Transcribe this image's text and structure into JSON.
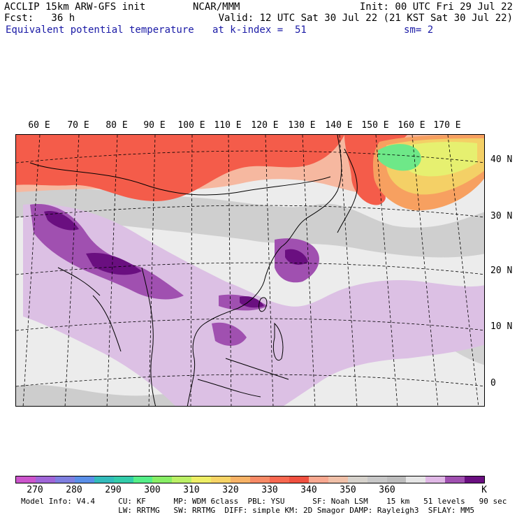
{
  "header": {
    "left_line1": "ACCLIP 15km ARW-GFS init",
    "left_line2": "Fcst:   36 h",
    "center_line1": "NCAR/MMM",
    "right_line1": "Init: 00 UTC Fri 29 Jul 22",
    "right_line2": "Valid: 12 UTC Sat 30 Jul 22 (21 KST Sat 30 Jul 22)",
    "field_name": "Equivalent potential temperature",
    "level": "at k-index =  51",
    "smoothing": "sm= 2"
  },
  "map": {
    "lon_labels": [
      "60 E",
      "70 E",
      "80 E",
      "90 E",
      "100 E",
      "110 E",
      "120 E",
      "130 E",
      "140 E",
      "150 E",
      "160 E",
      "170 E"
    ],
    "lat_labels": [
      "40 N",
      "30 N",
      "20 N",
      "10 N",
      "0"
    ]
  },
  "colorbar": {
    "colors": [
      "#cc55cc",
      "#a066d8",
      "#7f7fe0",
      "#5a8fe8",
      "#33bbbb",
      "#33ccaa",
      "#55ee88",
      "#88ee66",
      "#bbf066",
      "#eeee66",
      "#f7d466",
      "#f7b266",
      "#f78a66",
      "#f86850",
      "#f05040",
      "#f8a890",
      "#f0c0a8",
      "#d6d2cc",
      "#c8c8c8",
      "#bdbdbd",
      "#e6e6e6",
      "#e0b8e6",
      "#a050b0",
      "#6a0f80"
    ],
    "tick_labels": [
      "270",
      "280",
      "290",
      "300",
      "310",
      "320",
      "330",
      "340",
      "350",
      "360"
    ],
    "unit": "K"
  },
  "footer": {
    "line1": "Model Info: V4.4     CU: KF      MP: WDM 6class  PBL: YSU      SF: Noah LSM    15 km   51 levels   90 sec",
    "line2": "                     LW: RRTMG   SW: RRTMG  DIFF: simple KM: 2D Smagor DAMP: Rayleigh3  SFLAY: MM5"
  }
}
